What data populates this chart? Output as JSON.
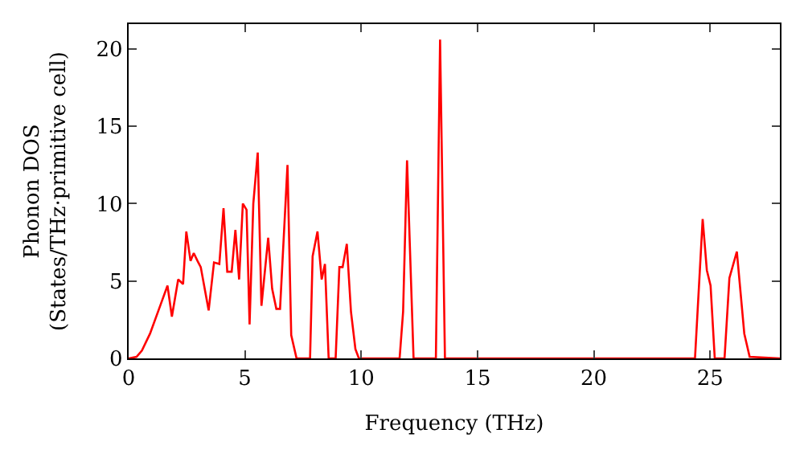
{
  "chart_data": {
    "type": "line",
    "xlabel": "Frequency (THz)",
    "ylabel": "Phonon DOS\n(States/THz·primitive cell)",
    "x": [
      0,
      0.34,
      0.57,
      0.92,
      1.38,
      1.67,
      1.86,
      2.13,
      2.34,
      2.48,
      2.66,
      2.8,
      2.96,
      3.1,
      3.44,
      3.67,
      3.9,
      4.08,
      4.24,
      4.43,
      4.59,
      4.75,
      4.91,
      5.07,
      5.2,
      5.36,
      5.55,
      5.71,
      6.0,
      6.17,
      6.35,
      6.51,
      6.83,
      6.99,
      7.22,
      7.8,
      7.91,
      8.12,
      8.3,
      8.44,
      8.6,
      8.9,
      9.06,
      9.2,
      9.38,
      9.56,
      9.75,
      9.9,
      11.65,
      11.8,
      11.97,
      12.25,
      13.21,
      13.39,
      13.6,
      24.35,
      24.68,
      24.86,
      25.02,
      25.2,
      25.62,
      25.83,
      26.15,
      26.47,
      26.7,
      28
    ],
    "series": [
      {
        "color": "#ff0000",
        "values": [
          0,
          0.1,
          0.5,
          1.6,
          3.5,
          4.7,
          2.7,
          5.1,
          4.8,
          8.2,
          6.3,
          6.8,
          6.3,
          5.9,
          3.1,
          6.2,
          6.1,
          9.7,
          5.6,
          5.6,
          8.3,
          5.1,
          10.0,
          9.6,
          2.2,
          10.0,
          13.3,
          3.4,
          7.8,
          4.5,
          3.2,
          3.2,
          12.5,
          1.5,
          0,
          0,
          6.6,
          8.2,
          5.1,
          6.1,
          0,
          0,
          5.9,
          5.9,
          7.4,
          3.0,
          0.6,
          0,
          0,
          3.0,
          12.8,
          0,
          0,
          20.6,
          0,
          0,
          9.0,
          5.7,
          4.7,
          0,
          0,
          5.2,
          6.9,
          1.6,
          0.1,
          0
        ]
      }
    ],
    "xlim": [
      0,
      28
    ],
    "ylim": [
      0,
      21.6
    ],
    "xticks": [
      0,
      5,
      10,
      15,
      20,
      25
    ],
    "yticks": [
      0,
      5,
      10,
      15,
      20
    ],
    "marker": "none",
    "line_style": "solid"
  }
}
